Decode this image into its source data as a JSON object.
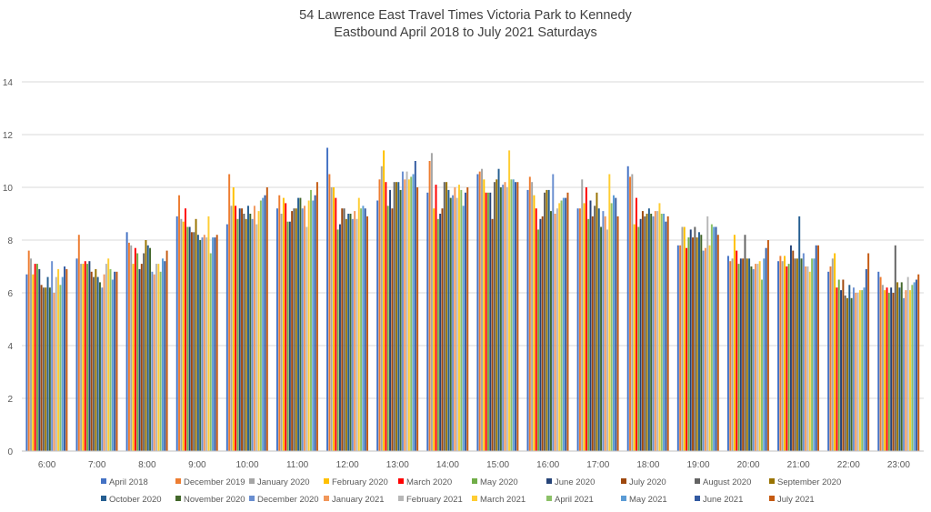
{
  "chart_data": {
    "type": "bar",
    "title": [
      "54 Lawrence East Travel Times Victoria Park to Kennedy",
      "Eastbound April 2018 to July 2021 Saturdays"
    ],
    "xlabel": "",
    "ylabel": "",
    "ylim": [
      0,
      14
    ],
    "yticks": [
      0,
      2,
      4,
      6,
      8,
      10,
      12,
      14
    ],
    "grid": true,
    "legend_position": "bottom",
    "categories": [
      "6:00",
      "7:00",
      "8:00",
      "9:00",
      "10:00",
      "11:00",
      "12:00",
      "13:00",
      "14:00",
      "15:00",
      "16:00",
      "17:00",
      "18:00",
      "19:00",
      "20:00",
      "21:00",
      "22:00",
      "23:00"
    ],
    "series": [
      {
        "name": "April 2018",
        "color": "#4472C4",
        "values": [
          6.7,
          7.3,
          8.3,
          8.9,
          8.6,
          9.2,
          11.5,
          9.5,
          9.8,
          10.5,
          9.9,
          9.2,
          10.8,
          7.8,
          7.4,
          7.2,
          6.8,
          6.8
        ]
      },
      {
        "name": "December 2019",
        "color": "#ED7D31",
        "values": [
          7.6,
          8.2,
          7.9,
          9.7,
          10.5,
          9.7,
          10.5,
          10.3,
          11.0,
          10.6,
          10.4,
          9.2,
          10.4,
          7.8,
          7.2,
          7.4,
          7.0,
          6.6
        ]
      },
      {
        "name": "January 2020",
        "color": "#A5A5A5",
        "values": [
          7.3,
          7.1,
          7.8,
          8.8,
          9.3,
          9.0,
          10.0,
          10.8,
          11.3,
          10.7,
          10.2,
          10.3,
          10.5,
          8.5,
          7.3,
          7.2,
          7.3,
          6.3
        ]
      },
      {
        "name": "February 2020",
        "color": "#FFC000",
        "values": [
          6.7,
          7.1,
          7.1,
          8.7,
          10.0,
          9.6,
          10.0,
          11.4,
          9.2,
          10.3,
          9.7,
          9.4,
          8.6,
          8.5,
          8.2,
          7.4,
          7.5,
          6.1
        ]
      },
      {
        "name": "March 2020",
        "color": "#FF0000",
        "values": [
          7.1,
          7.2,
          7.7,
          9.2,
          9.3,
          9.4,
          9.6,
          10.2,
          10.1,
          9.8,
          9.2,
          10.0,
          9.6,
          7.7,
          7.6,
          7.0,
          6.2,
          6.2
        ]
      },
      {
        "name": "May 2020",
        "color": "#70AD47",
        "values": [
          7.1,
          7.1,
          7.5,
          8.5,
          8.8,
          8.7,
          8.4,
          9.3,
          8.8,
          9.8,
          8.4,
          8.8,
          8.5,
          8.1,
          7.1,
          7.1,
          6.5,
          6.0
        ]
      },
      {
        "name": "June 2020",
        "color": "#264478",
        "values": [
          6.9,
          7.2,
          6.9,
          8.5,
          9.2,
          8.7,
          8.6,
          9.9,
          9.0,
          9.8,
          8.8,
          9.5,
          8.8,
          8.4,
          7.3,
          7.8,
          6.1,
          6.2
        ]
      },
      {
        "name": "July 2020",
        "color": "#9E480E",
        "values": [
          6.3,
          6.8,
          7.1,
          8.3,
          9.2,
          9.1,
          9.2,
          9.2,
          9.2,
          8.8,
          8.9,
          8.9,
          9.1,
          8.1,
          7.3,
          7.6,
          6.5,
          6.0
        ]
      },
      {
        "name": "August 2020",
        "color": "#636363",
        "values": [
          6.2,
          6.6,
          7.5,
          8.3,
          9.0,
          9.2,
          9.2,
          10.2,
          10.2,
          10.2,
          9.8,
          9.3,
          8.9,
          8.5,
          8.2,
          7.3,
          5.9,
          7.8
        ]
      },
      {
        "name": "September 2020",
        "color": "#997300",
        "values": [
          6.2,
          6.9,
          8.0,
          8.8,
          8.8,
          9.2,
          8.8,
          10.2,
          10.2,
          10.3,
          9.9,
          9.8,
          9.0,
          8.1,
          7.3,
          7.3,
          5.8,
          6.4
        ]
      },
      {
        "name": "October 2020",
        "color": "#255E91",
        "values": [
          6.6,
          6.6,
          7.8,
          8.2,
          9.3,
          9.6,
          9.0,
          10.2,
          9.9,
          10.7,
          9.9,
          9.2,
          9.2,
          8.3,
          7.3,
          8.9,
          6.3,
          6.2
        ]
      },
      {
        "name": "November 2020",
        "color": "#43682B",
        "values": [
          6.2,
          6.4,
          7.7,
          8.0,
          9.0,
          9.6,
          9.0,
          9.9,
          9.6,
          10.0,
          9.1,
          8.5,
          9.0,
          8.2,
          7.0,
          7.3,
          5.8,
          6.4
        ]
      },
      {
        "name": "December 2020",
        "color": "#698ED0",
        "values": [
          7.2,
          6.2,
          6.8,
          8.1,
          8.8,
          9.2,
          8.8,
          10.6,
          9.7,
          10.1,
          10.5,
          9.1,
          8.9,
          7.6,
          6.9,
          7.5,
          6.2,
          5.8
        ]
      },
      {
        "name": "January 2021",
        "color": "#F1975A",
        "values": [
          6.0,
          6.7,
          6.7,
          8.2,
          9.3,
          9.3,
          9.1,
          10.3,
          10.0,
          10.2,
          9.0,
          8.9,
          9.1,
          7.7,
          7.1,
          7.0,
          6.0,
          6.1
        ]
      },
      {
        "name": "February 2021",
        "color": "#B7B7B7",
        "values": [
          6.6,
          7.1,
          7.1,
          8.1,
          8.6,
          8.5,
          8.8,
          10.6,
          9.6,
          10.0,
          9.2,
          8.4,
          9.1,
          8.9,
          7.1,
          7.0,
          6.0,
          6.6
        ]
      },
      {
        "name": "March 2021",
        "color": "#FFCD33",
        "values": [
          6.9,
          7.3,
          7.1,
          8.9,
          9.1,
          9.5,
          9.6,
          10.3,
          10.1,
          11.4,
          9.4,
          10.5,
          9.4,
          7.8,
          7.2,
          6.8,
          6.1,
          6.1
        ]
      },
      {
        "name": "April 2021",
        "color": "#8CC168",
        "values": [
          6.3,
          6.9,
          6.8,
          7.5,
          9.5,
          9.9,
          9.2,
          10.4,
          9.9,
          10.3,
          9.5,
          9.4,
          9.0,
          8.6,
          6.5,
          7.3,
          6.1,
          6.3
        ]
      },
      {
        "name": "May 2021",
        "color": "#5B9BD5",
        "values": [
          6.6,
          6.5,
          7.3,
          8.1,
          9.6,
          9.5,
          9.3,
          10.5,
          9.3,
          10.3,
          9.6,
          9.7,
          9.0,
          8.5,
          7.3,
          7.3,
          6.2,
          6.4
        ]
      },
      {
        "name": "June 2021",
        "color": "#335AA1",
        "values": [
          7.0,
          6.8,
          7.2,
          8.1,
          9.7,
          9.7,
          9.2,
          11.0,
          9.8,
          10.2,
          9.6,
          9.6,
          8.7,
          8.5,
          7.7,
          7.8,
          6.9,
          6.5
        ]
      },
      {
        "name": "July 2021",
        "color": "#C55A11",
        "values": [
          6.9,
          6.8,
          7.6,
          8.2,
          10.0,
          10.2,
          8.9,
          10.0,
          10.0,
          10.2,
          9.8,
          8.9,
          8.9,
          8.2,
          8.0,
          7.8,
          7.5,
          6.7
        ]
      }
    ]
  }
}
